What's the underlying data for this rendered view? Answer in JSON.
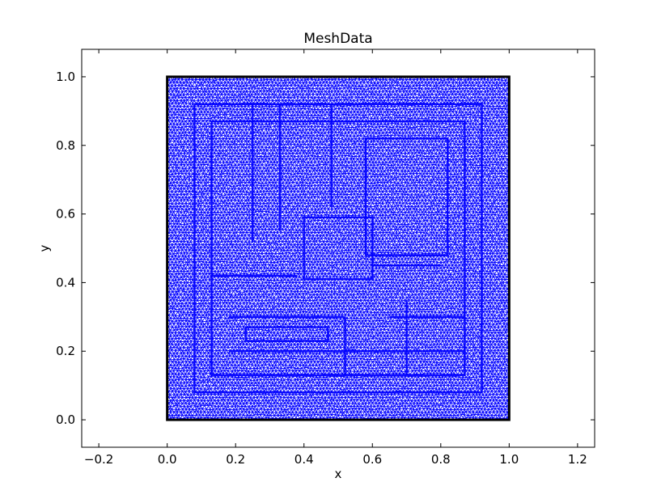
{
  "chart_data": {
    "type": "mesh",
    "title": "MeshData",
    "xlabel": "x",
    "ylabel": "y",
    "xlim": [
      -0.25,
      1.25
    ],
    "ylim": [
      -0.08,
      1.08
    ],
    "xticks": [
      -0.2,
      0.0,
      0.2,
      0.4,
      0.6,
      0.8,
      1.0,
      1.2
    ],
    "yticks": [
      0.0,
      0.2,
      0.4,
      0.6,
      0.8,
      1.0
    ],
    "xtick_labels": [
      "−0.2",
      "0.0",
      "0.2",
      "0.4",
      "0.6",
      "0.8",
      "1.0",
      "1.2"
    ],
    "ytick_labels": [
      "0.0",
      "0.2",
      "0.4",
      "0.6",
      "0.8",
      "1.0"
    ],
    "domain": {
      "xmin": 0.0,
      "xmax": 1.0,
      "ymin": 0.0,
      "ymax": 1.0
    },
    "mesh_color": "#0000ff",
    "boundary_color": "#000000",
    "grid": false,
    "inner_structures": [
      {
        "kind": "rect",
        "x0": 0.08,
        "y0": 0.08,
        "x1": 0.92,
        "y1": 0.92
      },
      {
        "kind": "rect",
        "x0": 0.13,
        "y0": 0.13,
        "x1": 0.87,
        "y1": 0.87
      },
      {
        "kind": "rect",
        "x0": 0.4,
        "y0": 0.41,
        "x1": 0.6,
        "y1": 0.59
      },
      {
        "kind": "line",
        "x0": 0.33,
        "y0": 0.92,
        "x1": 0.33,
        "y1": 0.55
      },
      {
        "kind": "line",
        "x0": 0.48,
        "y0": 0.92,
        "x1": 0.48,
        "y1": 0.62
      },
      {
        "kind": "line",
        "x0": 0.52,
        "y0": 0.3,
        "x1": 0.52,
        "y1": 0.13
      },
      {
        "kind": "line",
        "x0": 0.18,
        "y0": 0.3,
        "x1": 0.52,
        "y1": 0.3
      },
      {
        "kind": "line",
        "x0": 0.18,
        "y0": 0.2,
        "x1": 0.87,
        "y1": 0.2
      },
      {
        "kind": "line",
        "x0": 0.13,
        "y0": 0.42,
        "x1": 0.38,
        "y1": 0.42
      },
      {
        "kind": "line",
        "x0": 0.6,
        "y0": 0.45,
        "x1": 0.8,
        "y1": 0.45
      },
      {
        "kind": "line",
        "x0": 0.65,
        "y0": 0.3,
        "x1": 0.87,
        "y1": 0.3
      },
      {
        "kind": "rect",
        "x0": 0.58,
        "y0": 0.48,
        "x1": 0.82,
        "y1": 0.82
      },
      {
        "kind": "rect",
        "x0": 0.23,
        "y0": 0.23,
        "x1": 0.47,
        "y1": 0.27
      },
      {
        "kind": "line",
        "x0": 0.25,
        "y0": 0.92,
        "x1": 0.25,
        "y1": 0.52
      },
      {
        "kind": "line",
        "x0": 0.7,
        "y0": 0.13,
        "x1": 0.7,
        "y1": 0.35
      }
    ]
  }
}
